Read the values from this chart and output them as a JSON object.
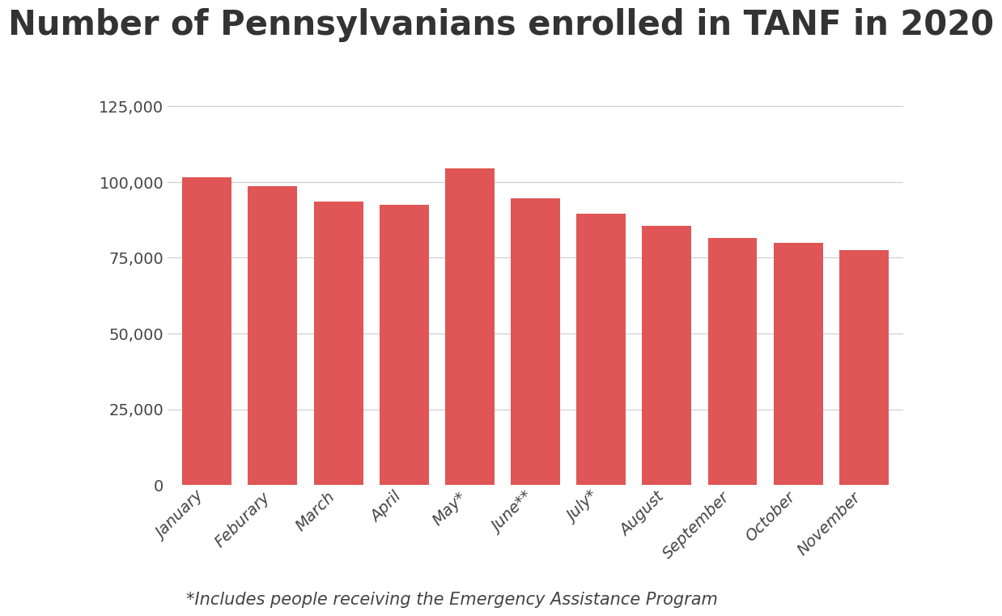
{
  "title": "Number of Pennsylvanians enrolled in TANF in 2020",
  "categories": [
    "January",
    "Feburary",
    "March",
    "April",
    "May*",
    "June**",
    "July*",
    "August",
    "September",
    "October",
    "November"
  ],
  "values": [
    101500,
    98500,
    93500,
    92500,
    104500,
    94500,
    89500,
    85500,
    81500,
    80000,
    77500
  ],
  "bar_color": "#E05555",
  "background_color": "#ffffff",
  "ylim": [
    0,
    130000
  ],
  "yticks": [
    0,
    25000,
    50000,
    75000,
    100000,
    125000
  ],
  "footnote": "*Includes people receiving the Emergency Assistance Program",
  "title_fontsize": 30,
  "tick_fontsize": 14,
  "footnote_fontsize": 15,
  "grid_color": "#cccccc"
}
